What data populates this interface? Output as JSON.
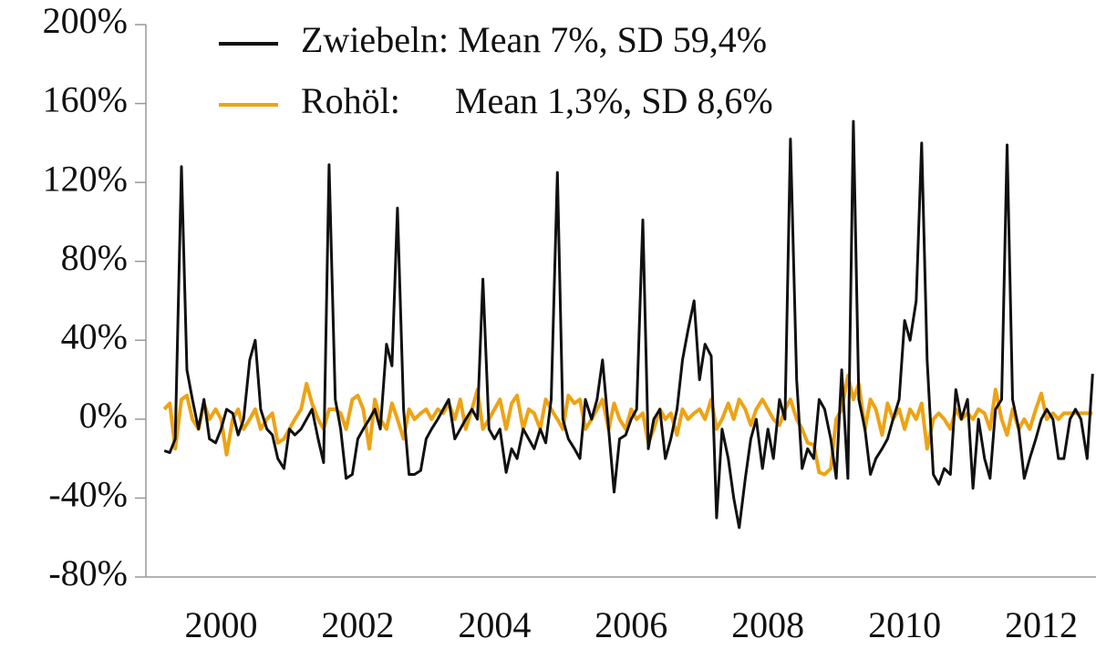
{
  "chart_data": {
    "type": "line",
    "x": [
      1999.17,
      1999.25,
      1999.33,
      1999.42,
      1999.5,
      1999.58,
      1999.67,
      1999.75,
      1999.83,
      1999.92,
      2000,
      2000.08,
      2000.17,
      2000.25,
      2000.33,
      2000.42,
      2000.5,
      2000.58,
      2000.67,
      2000.75,
      2000.83,
      2000.92,
      2001,
      2001.08,
      2001.17,
      2001.25,
      2001.33,
      2001.42,
      2001.5,
      2001.58,
      2001.67,
      2001.75,
      2001.83,
      2001.92,
      2002,
      2002.08,
      2002.17,
      2002.25,
      2002.33,
      2002.42,
      2002.5,
      2002.58,
      2002.67,
      2002.75,
      2002.83,
      2002.92,
      2003,
      2003.08,
      2003.17,
      2003.25,
      2003.33,
      2003.42,
      2003.5,
      2003.58,
      2003.67,
      2003.75,
      2003.83,
      2003.92,
      2004,
      2004.08,
      2004.17,
      2004.25,
      2004.33,
      2004.42,
      2004.5,
      2004.58,
      2004.67,
      2004.75,
      2004.83,
      2004.92,
      2005,
      2005.08,
      2005.17,
      2005.25,
      2005.33,
      2005.42,
      2005.5,
      2005.58,
      2005.67,
      2005.75,
      2005.83,
      2005.92,
      2006,
      2006.08,
      2006.17,
      2006.25,
      2006.33,
      2006.42,
      2006.5,
      2006.58,
      2006.67,
      2006.75,
      2006.83,
      2006.92,
      2007,
      2007.08,
      2007.17,
      2007.25,
      2007.33,
      2007.42,
      2007.5,
      2007.58,
      2007.67,
      2007.75,
      2007.83,
      2007.92,
      2008,
      2008.08,
      2008.17,
      2008.25,
      2008.33,
      2008.42,
      2008.5,
      2008.58,
      2008.67,
      2008.75,
      2008.83,
      2008.92,
      2009,
      2009.08,
      2009.17,
      2009.25,
      2009.33,
      2009.42,
      2009.5,
      2009.58,
      2009.67,
      2009.75,
      2009.83,
      2009.92,
      2010,
      2010.08,
      2010.17,
      2010.25,
      2010.33,
      2010.42,
      2010.5,
      2010.58,
      2010.67,
      2010.75,
      2010.83,
      2010.92,
      2011,
      2011.08,
      2011.17,
      2011.25,
      2011.33,
      2011.42,
      2011.5,
      2011.58,
      2011.67,
      2011.75,
      2011.83,
      2011.92,
      2012,
      2012.08,
      2012.17,
      2012.25,
      2012.33,
      2012.42,
      2012.5,
      2012.58,
      2012.67,
      2012.75
    ],
    "series": [
      {
        "name": "Zwiebeln: Mean 7%, SD 59,4%",
        "color": "#111111",
        "values": [
          -16,
          -17,
          -10,
          128,
          25,
          10,
          -5,
          10,
          -10,
          -12,
          -5,
          5,
          3,
          -8,
          0,
          30,
          40,
          5,
          -5,
          -8,
          -20,
          -25,
          -5,
          -8,
          -5,
          0,
          5,
          -10,
          -22,
          129,
          10,
          -5,
          -30,
          -28,
          -10,
          -5,
          0,
          5,
          -5,
          38,
          27,
          107,
          5,
          -28,
          -28,
          -26,
          -10,
          -5,
          0,
          5,
          10,
          -10,
          -5,
          0,
          5,
          0,
          71,
          -5,
          -10,
          -5,
          -27,
          -15,
          -20,
          -5,
          -10,
          -15,
          -5,
          -12,
          10,
          125,
          0,
          -10,
          -15,
          -20,
          10,
          0,
          10,
          30,
          -5,
          -37,
          -10,
          -8,
          0,
          5,
          101,
          -15,
          0,
          5,
          -20,
          -10,
          5,
          30,
          45,
          60,
          20,
          38,
          32,
          -50,
          -5,
          -20,
          -40,
          -55,
          -30,
          -10,
          0,
          -25,
          -5,
          -20,
          10,
          0,
          142,
          20,
          -25,
          -15,
          -20,
          10,
          5,
          -10,
          -30,
          25,
          -30,
          151,
          10,
          -5,
          -28,
          -20,
          -15,
          -10,
          0,
          10,
          50,
          40,
          60,
          140,
          30,
          -28,
          -33,
          -25,
          -28,
          15,
          0,
          10,
          -35,
          0,
          -20,
          -30,
          5,
          10,
          139,
          10,
          -5,
          -30,
          -20,
          -10,
          0,
          5,
          0,
          -20,
          -20,
          0,
          5,
          0,
          -20,
          23
        ]
      },
      {
        "name": "Rohöl:      Mean 1,3%, SD 8,6%",
        "color": "#eda315",
        "values": [
          5,
          8,
          -15,
          10,
          12,
          0,
          -5,
          8,
          0,
          5,
          0,
          -18,
          0,
          5,
          -5,
          0,
          5,
          -5,
          0,
          3,
          -12,
          -10,
          -5,
          0,
          5,
          18,
          8,
          0,
          -5,
          5,
          5,
          3,
          -5,
          10,
          12,
          5,
          -15,
          10,
          0,
          -5,
          8,
          0,
          -10,
          5,
          0,
          3,
          5,
          0,
          5,
          3,
          8,
          0,
          10,
          -5,
          5,
          15,
          -5,
          0,
          5,
          10,
          -5,
          8,
          12,
          -5,
          5,
          3,
          -5,
          10,
          5,
          0,
          -5,
          12,
          8,
          10,
          -5,
          0,
          5,
          10,
          -5,
          8,
          0,
          -5,
          5,
          0,
          3,
          -12,
          -5,
          5,
          0,
          3,
          -8,
          5,
          0,
          3,
          5,
          0,
          10,
          -5,
          0,
          8,
          0,
          10,
          5,
          -3,
          5,
          10,
          5,
          0,
          -3,
          5,
          10,
          0,
          -5,
          -12,
          -13,
          -27,
          -28,
          -25,
          0,
          5,
          22,
          10,
          18,
          -5,
          10,
          5,
          -8,
          8,
          0,
          5,
          -5,
          5,
          0,
          8,
          -15,
          0,
          3,
          0,
          -5,
          5,
          0,
          3,
          0,
          5,
          3,
          -5,
          15,
          0,
          -8,
          5,
          -5,
          0,
          -5,
          5,
          13,
          0,
          3,
          0,
          3,
          3,
          3,
          3,
          3,
          3
        ]
      }
    ],
    "xlim": [
      1998.9,
      2012.8
    ],
    "xticks": [
      2000,
      2002,
      2004,
      2006,
      2008,
      2010,
      2012
    ],
    "ylim": [
      -80,
      200
    ],
    "yticks": [
      {
        "value": -80,
        "label": "-80%"
      },
      {
        "value": -40,
        "label": "-40%"
      },
      {
        "value": 0,
        "label": "0%"
      },
      {
        "value": 40,
        "label": "40%"
      },
      {
        "value": 80,
        "label": "80%"
      },
      {
        "value": 120,
        "label": "120%"
      },
      {
        "value": 160,
        "label": "160%"
      },
      {
        "value": 200,
        "label": "200%"
      }
    ],
    "legend": "top-left"
  }
}
